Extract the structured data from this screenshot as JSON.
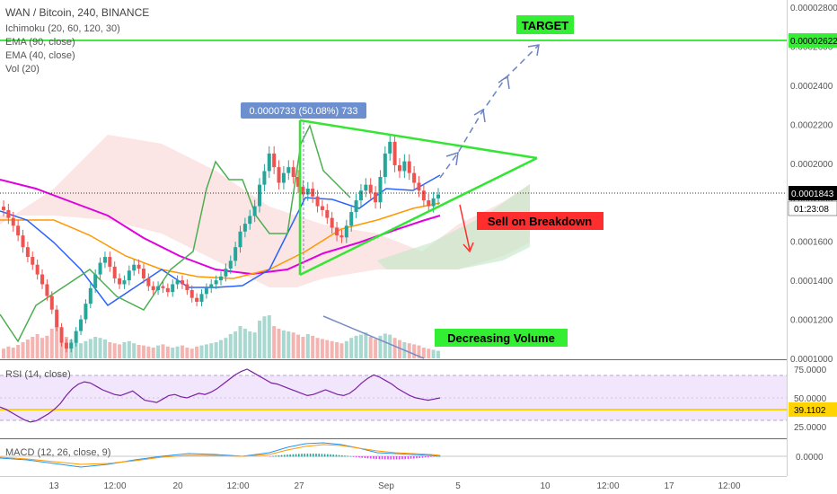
{
  "header": {
    "symbol": "WAN / Bitcoin, 240, BINANCE",
    "indicators": [
      "Ichimoku (20, 60, 120, 30)",
      "EMA (90, close)",
      "EMA (40, close)",
      "Vol (20)"
    ]
  },
  "rsi_label": "RSI (14, close)",
  "macd_label": "MACD (12, 26, close, 9)",
  "annotations": {
    "target": "TARGET",
    "sell": "Sell on Breakdown",
    "volume": "Decreasing Volume",
    "measure": "0.0000733 (50.08%) 733",
    "price_tag": "0.0001843",
    "countdown": "01:23:08",
    "target_price": "0.00002622",
    "rsi_tag": "39.1102"
  },
  "colors": {
    "up": "#26a69a",
    "down": "#ef5350",
    "green": "#00e600",
    "ema90": "#e000e0",
    "ema40": "#ff9800",
    "tenkan": "#2962ff",
    "chikou": "#4caf50",
    "rsi": "#7b1fa2",
    "macd": "#2196f3",
    "signal": "#ff9800",
    "sell_red": "#ff2d2d"
  },
  "chart_data": [
    {
      "type": "candlestick",
      "title": "WAN / Bitcoin, 240, BINANCE",
      "x_ticks": [
        "13",
        "12:00",
        "20",
        "12:00",
        "27",
        "Sep",
        "5",
        "10",
        "12:00",
        "17",
        "12:00"
      ],
      "y_ticks": [
        "0.00002800",
        "0.0002600",
        "0.0002400",
        "0.0002200",
        "0.0002000",
        "0.0001800",
        "0.0001600",
        "0.0001400",
        "0.0001200",
        "0.0001000"
      ],
      "ylim": [
        0.0001,
        0.00028
      ],
      "target_level": 0.000262,
      "last_price": 0.0001843,
      "close": [
        0.000176,
        0.000172,
        0.000168,
        0.000163,
        0.000157,
        0.000152,
        0.000148,
        0.000143,
        0.000138,
        0.000132,
        0.000125,
        0.000116,
        0.000108,
        0.000105,
        0.000108,
        0.000114,
        0.00012,
        0.000128,
        0.000136,
        0.000143,
        0.000149,
        0.000152,
        0.000147,
        0.000141,
        0.000138,
        0.00014,
        0.000145,
        0.000148,
        0.000146,
        0.000141,
        0.000137,
        0.000135,
        0.000137,
        0.000136,
        0.000134,
        0.000138,
        0.00014,
        0.000138,
        0.000135,
        0.000131,
        0.000129,
        0.000133,
        0.000136,
        0.000138,
        0.00014,
        0.000142,
        0.000146,
        0.00015,
        0.000157,
        0.000165,
        0.000169,
        0.000173,
        0.000178,
        0.000189,
        0.000196,
        0.000205,
        0.000198,
        0.00019,
        0.000195,
        0.000198,
        0.000193,
        0.000188,
        0.000184,
        0.000187,
        0.000183,
        0.000178,
        0.000176,
        0.000172,
        0.000167,
        0.000163,
        0.000162,
        0.000168,
        0.000175,
        0.000181,
        0.000186,
        0.000189,
        0.000185,
        0.00018,
        0.000193,
        0.000205,
        0.000211,
        0.000199,
        0.000196,
        0.000201,
        0.000195,
        0.00019,
        0.000186,
        0.000181,
        0.000178,
        0.000182,
        0.000184
      ],
      "volume": [
        18,
        22,
        20,
        25,
        30,
        35,
        40,
        45,
        38,
        42,
        55,
        60,
        50,
        40,
        35,
        30,
        28,
        32,
        36,
        40,
        38,
        35,
        30,
        28,
        26,
        30,
        32,
        28,
        25,
        24,
        22,
        20,
        24,
        26,
        22,
        20,
        22,
        24,
        20,
        18,
        22,
        24,
        26,
        28,
        30,
        34,
        38,
        45,
        50,
        60,
        55,
        50,
        48,
        70,
        78,
        80,
        60,
        55,
        52,
        50,
        48,
        44,
        40,
        45,
        42,
        38,
        36,
        34,
        32,
        30,
        28,
        32,
        38,
        42,
        44,
        48,
        40,
        36,
        42,
        46,
        44,
        38,
        34,
        30,
        28,
        26,
        24,
        20,
        18,
        16,
        14
      ]
    },
    {
      "type": "line",
      "title": "RSI (14, close)",
      "y_ticks": [
        "75.0000",
        "50.0000",
        "25.0000"
      ],
      "ylim": [
        20,
        80
      ],
      "bands": [
        70,
        30
      ],
      "reference_level": 39.1102,
      "values": [
        42,
        40,
        37,
        34,
        31,
        29,
        30,
        33,
        36,
        40,
        45,
        52,
        58,
        62,
        64,
        63,
        60,
        57,
        55,
        53,
        52,
        54,
        56,
        52,
        48,
        47,
        46,
        49,
        52,
        53,
        51,
        50,
        52,
        54,
        53,
        55,
        58,
        62,
        66,
        70,
        73,
        75,
        72,
        69,
        66,
        63,
        62,
        60,
        58,
        56,
        54,
        52,
        53,
        55,
        57,
        55,
        53,
        52,
        54,
        58,
        63,
        67,
        70,
        68,
        65,
        62,
        58,
        55,
        52,
        50,
        49,
        48,
        49,
        50
      ]
    },
    {
      "type": "line",
      "title": "MACD (12, 26, close, 9)",
      "y_ticks": [
        "0.0000"
      ],
      "ylim": [
        -1,
        1
      ]
    }
  ]
}
